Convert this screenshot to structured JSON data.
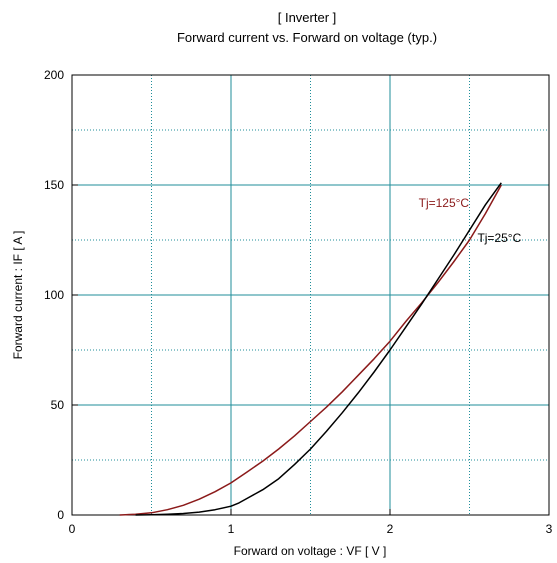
{
  "chart_data": {
    "type": "line",
    "title": "[ Inverter ]",
    "subtitle": "Forward current  vs.  Forward on voltage  (typ.)",
    "xlabel": "Forward on voltage  :  VF  [ V ]",
    "ylabel": "Forward current  :  IF [ A ]",
    "xlim": [
      0,
      3
    ],
    "ylim": [
      0,
      200
    ],
    "x_ticks": [
      0,
      1,
      2,
      3
    ],
    "x_tick_labels": [
      "0",
      "1",
      "2",
      "3"
    ],
    "y_ticks": [
      0,
      50,
      100,
      150,
      200
    ],
    "y_tick_labels": [
      "0",
      "50",
      "100",
      "150",
      "200"
    ],
    "x_minor_grid": [
      0.5,
      1.5,
      2.5
    ],
    "y_minor_grid": [
      25,
      75,
      125,
      175
    ],
    "grid": true,
    "series": [
      {
        "name": "Tj=125°C",
        "color": "#8b1a1a",
        "x": [
          0.3,
          0.4,
          0.5,
          0.6,
          0.7,
          0.8,
          0.9,
          1.0,
          1.1,
          1.2,
          1.3,
          1.4,
          1.5,
          1.6,
          1.7,
          1.8,
          1.9,
          2.0,
          2.1,
          2.2,
          2.3,
          2.4,
          2.5,
          2.6,
          2.7
        ],
        "y": [
          0,
          0.3,
          1.0,
          2.4,
          4.4,
          7.2,
          10.6,
          14.6,
          19.5,
          24.5,
          30.0,
          36.0,
          42.5,
          49.0,
          56.0,
          63.5,
          71.0,
          79.0,
          88.0,
          96.5,
          105.5,
          115.0,
          125.0,
          137.0,
          150.0
        ]
      },
      {
        "name": "Tj=25°C",
        "color": "#000000",
        "x": [
          0.4,
          0.5,
          0.6,
          0.7,
          0.8,
          0.9,
          1.0,
          1.05,
          1.1,
          1.2,
          1.3,
          1.4,
          1.5,
          1.6,
          1.7,
          1.8,
          1.9,
          2.0,
          2.1,
          2.2,
          2.3,
          2.4,
          2.5,
          2.6,
          2.7
        ],
        "y": [
          0,
          0.1,
          0.3,
          0.7,
          1.3,
          2.4,
          4.0,
          5.5,
          7.5,
          11.5,
          16.5,
          23.0,
          30.0,
          38.0,
          46.5,
          55.5,
          65.0,
          75.0,
          85.5,
          96.0,
          107.0,
          118.0,
          129.5,
          141.0,
          151.0
        ]
      }
    ],
    "annotations": [
      {
        "text": "Tj=125°C",
        "series": 0,
        "at_x": 2.18,
        "at_y": 140,
        "color": "#8b1a1a"
      },
      {
        "text": "Tj=25°C",
        "series": 1,
        "at_x": 2.55,
        "at_y": 124,
        "color": "#000000"
      }
    ]
  }
}
